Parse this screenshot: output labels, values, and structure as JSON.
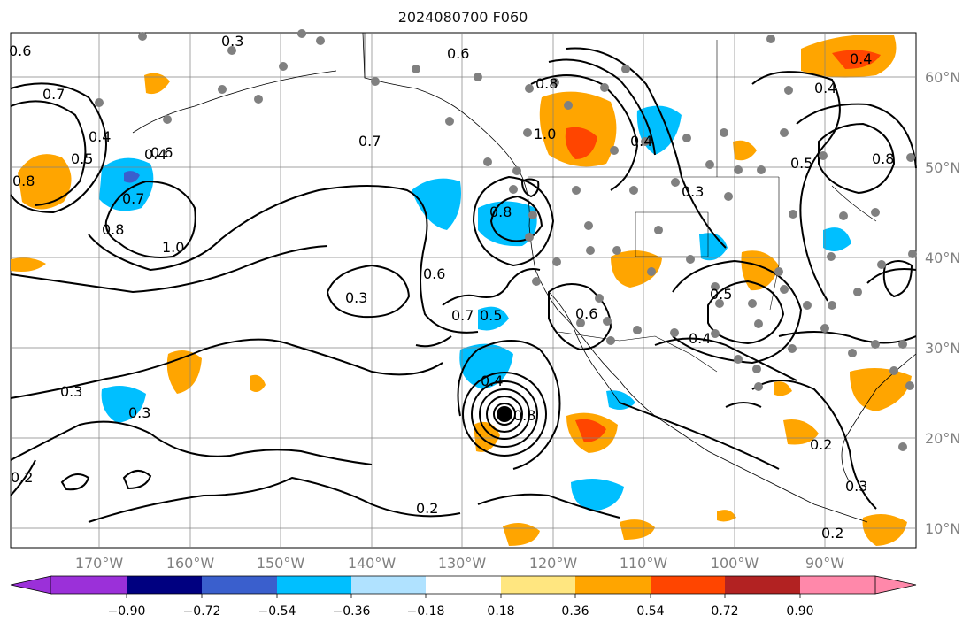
{
  "title": "2024080700 F060",
  "lon_labels": [
    "170°W",
    "160°W",
    "150°W",
    "140°W",
    "130°W",
    "120°W",
    "110°W",
    "100°W",
    "90°W"
  ],
  "lat_labels": [
    "60°N",
    "50°N",
    "40°N",
    "30°N",
    "20°N",
    "10°N"
  ],
  "colorbar": {
    "ticks": [
      "−0.90",
      "−0.72",
      "−0.54",
      "−0.36",
      "−0.18",
      "0.18",
      "0.36",
      "0.54",
      "0.72",
      "0.90"
    ],
    "colors": [
      "#9b30d9",
      "#000080",
      "#3a5fcd",
      "#00bfff",
      "#b0e2ff",
      "#ffffff",
      "#ffe680",
      "#ffa500",
      "#ff4500",
      "#b22222",
      "#ff88aa"
    ]
  },
  "contour_labels": [
    "0.6",
    "0.3",
    "0.6",
    "0.7",
    "0.4",
    "0.5",
    "0.8",
    "0.4",
    "0.7",
    "0.6",
    "0.8",
    "1.0",
    "0.7",
    "0.8",
    "0.6",
    "0.3",
    "0.7",
    "0.5",
    "0.4",
    "0.3",
    "0.3",
    "0.2",
    "0.4",
    "0.2",
    "1.0",
    "0.8",
    "0.4",
    "0.3",
    "0.5",
    "0.4",
    "0.5",
    "0.8",
    "0.2",
    "0.3",
    "0.2",
    "0.4",
    "0.6",
    "0.8"
  ],
  "colors": {
    "land_fill": "#ffffff",
    "grid": "#808080",
    "contour": "#000000",
    "station": "#808080"
  }
}
